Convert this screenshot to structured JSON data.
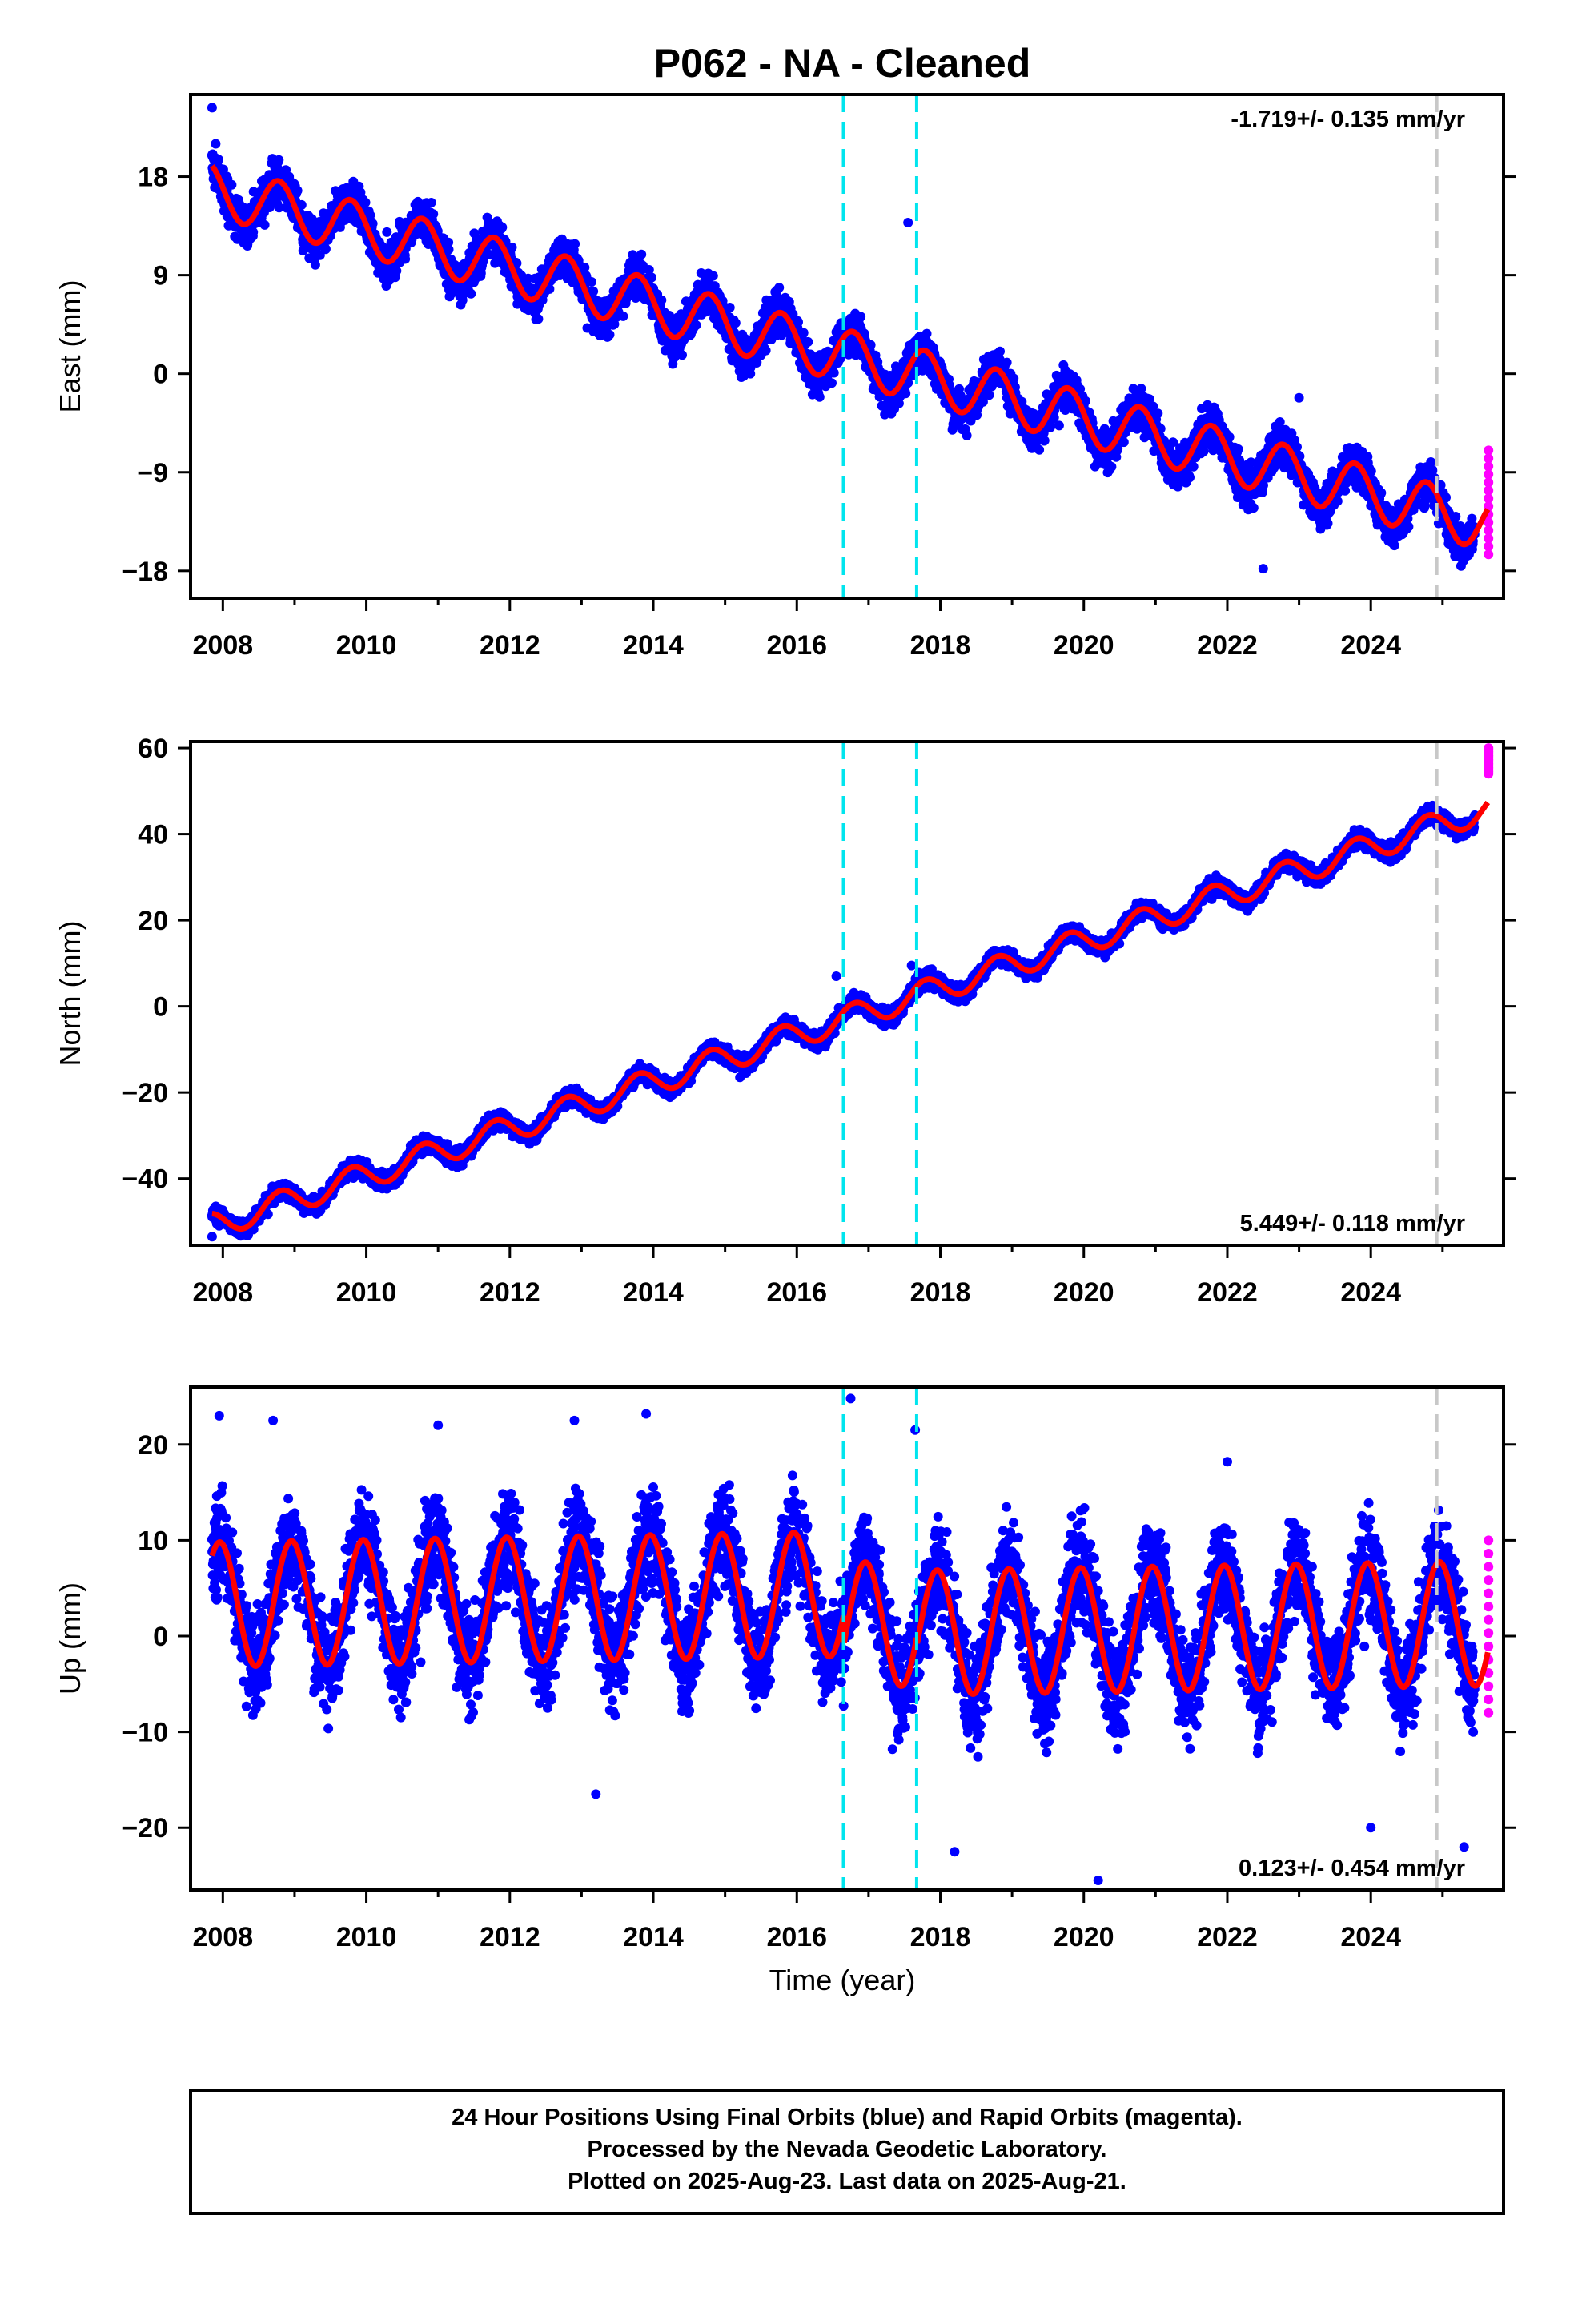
{
  "title": "P062  - NA - Cleaned",
  "xlabel": "Time (year)",
  "footer": {
    "line1": "24 Hour Positions Using Final Orbits (blue) and Rapid Orbits (magenta).",
    "line2": "Processed by the Nevada Geodetic Laboratory.",
    "line3": "Plotted on 2025-Aug-23. Last data on 2025-Aug-21."
  },
  "colors": {
    "final_orbits": "#0000ff",
    "rapid_orbits": "#ff00ff",
    "model_fit": "#ff0000",
    "equipment_change": "#00e5ee",
    "event_marker": "#c8c8c8"
  },
  "chart_data": [
    {
      "type": "scatter",
      "panel": "east",
      "ylabel": "East (mm)",
      "rate_text": "-1.719+/- 0.135 mm/yr",
      "xlim": [
        2007.55,
        2025.85
      ],
      "ylim": [
        -20.5,
        25.5
      ],
      "x_ticks": [
        2008,
        2010,
        2012,
        2014,
        2016,
        2018,
        2020,
        2022,
        2024
      ],
      "y_ticks": [
        18,
        9,
        0,
        -9,
        -18
      ],
      "y_tick_labels": [
        "18",
        "9",
        "0",
        "−9",
        "−18"
      ],
      "model": {
        "t0": 2007.85,
        "y0": 16.8,
        "rate": -1.719,
        "amp": 2.4,
        "phase": 2.0,
        "t_end": 2025.63
      },
      "rapid_tail": {
        "start": 2025.45,
        "end": 2025.64,
        "y_min": -16.5,
        "y_max": -7.0
      },
      "outliers": [
        [
          2007.85,
          24.3
        ],
        [
          2007.9,
          21.0
        ],
        [
          2017.55,
          13.8
        ],
        [
          2022.5,
          -17.8
        ],
        [
          2023.0,
          -2.2
        ],
        [
          2015.1,
          1.2
        ]
      ],
      "equipment_changes": [
        2016.65,
        2017.67
      ],
      "event_markers": [
        2024.92
      ]
    },
    {
      "type": "scatter",
      "panel": "north",
      "ylabel": "North (mm)",
      "rate_text": "5.449+/- 0.118 mm/yr",
      "xlim": [
        2007.55,
        2025.85
      ],
      "ylim": [
        -55.5,
        61.5
      ],
      "x_ticks": [
        2008,
        2010,
        2012,
        2014,
        2016,
        2018,
        2020,
        2022,
        2024
      ],
      "y_ticks": [
        60,
        40,
        20,
        0,
        -20,
        -40
      ],
      "y_tick_labels": [
        "60",
        "40",
        "20",
        "0",
        "−20",
        "−40"
      ],
      "model": {
        "t0": 2007.85,
        "y0": -51.0,
        "rate": 5.449,
        "amp": 3.0,
        "phase": 1.9,
        "t_end": 2025.63
      },
      "rapid_tail": {
        "start": 2025.45,
        "end": 2025.64,
        "y_min": 54.0,
        "y_max": 60.0
      },
      "outliers": [
        [
          2007.85,
          -53.5
        ],
        [
          2016.55,
          7.0
        ],
        [
          2017.6,
          9.5
        ]
      ],
      "equipment_changes": [
        2016.65,
        2017.67
      ],
      "event_markers": [
        2024.92
      ]
    },
    {
      "type": "scatter",
      "panel": "up",
      "ylabel": "Up (mm)",
      "rate_text": "0.123+/- 0.454 mm/yr",
      "xlim": [
        2007.55,
        2025.85
      ],
      "ylim": [
        -26.5,
        26.0
      ],
      "x_ticks": [
        2008,
        2010,
        2012,
        2014,
        2016,
        2018,
        2020,
        2022,
        2024
      ],
      "y_ticks": [
        20,
        10,
        0,
        -10,
        -20
      ],
      "y_tick_labels": [
        "20",
        "10",
        "0",
        "−10",
        "−20"
      ],
      "model": {
        "t0": 2007.85,
        "y0": 3.3,
        "rate": 0.123,
        "amp": 6.5,
        "phase": 0.9,
        "offset_2016": -3.2,
        "t_end": 2025.63
      },
      "rapid_tail": {
        "start": 2025.45,
        "end": 2025.64,
        "y_min": -8.0,
        "y_max": 10.0
      },
      "outliers": [
        [
          2007.95,
          23.0
        ],
        [
          2008.7,
          22.5
        ],
        [
          2011.0,
          22.0
        ],
        [
          2012.9,
          22.5
        ],
        [
          2013.9,
          23.2
        ],
        [
          2016.75,
          24.8
        ],
        [
          2017.65,
          21.5
        ],
        [
          2020.2,
          -25.5
        ],
        [
          2018.2,
          -22.5
        ],
        [
          2022.0,
          18.2
        ],
        [
          2013.2,
          -16.5
        ],
        [
          2024.0,
          -20.0
        ],
        [
          2025.3,
          -22.0
        ]
      ],
      "equipment_changes": [
        2016.65,
        2017.67
      ],
      "event_markers": [
        2024.92
      ]
    }
  ]
}
